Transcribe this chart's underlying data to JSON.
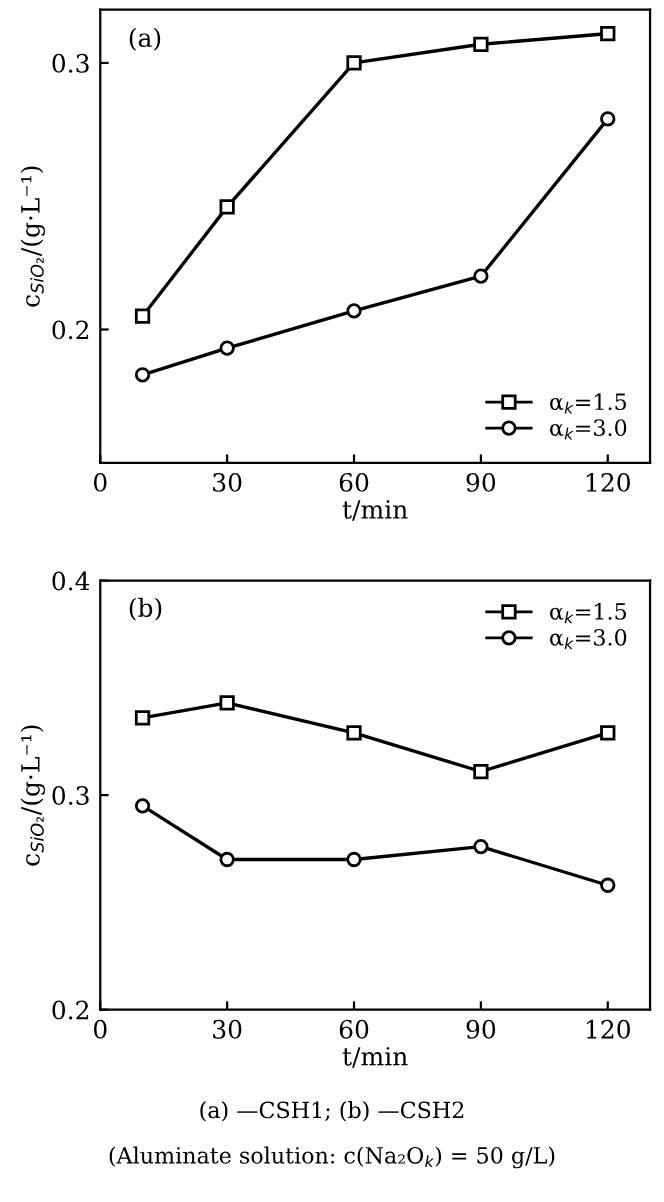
{
  "chart_data": [
    {
      "type": "line",
      "title": "(a)",
      "xlabel": "t/min",
      "ylabel": "c$_{SiO₂}$/(g·L⁻¹)",
      "x": [
        10,
        30,
        60,
        90,
        120
      ],
      "series": [
        {
          "name": "α$_{k}$=1.5",
          "color": "#000000",
          "marker": "square",
          "values": [
            0.205,
            0.246,
            0.3,
            0.307,
            0.311
          ]
        },
        {
          "name": "α$_{k}$=3.0",
          "color": "#000000",
          "marker": "circle",
          "values": [
            0.183,
            0.193,
            0.207,
            0.22,
            0.279
          ]
        }
      ],
      "xlim": [
        0,
        130
      ],
      "xticks": [
        0,
        30,
        60,
        90,
        120
      ],
      "ylim": [
        0.15,
        0.32
      ],
      "yticks": [
        0.2,
        0.3
      ],
      "grid": false,
      "legend": "bottom right",
      "line_style": "solid"
    },
    {
      "type": "line",
      "title": "(b)",
      "xlabel": "t/min",
      "ylabel": "c$_{SiO₂}$/(g·L⁻¹)",
      "x": [
        10,
        30,
        60,
        90,
        120
      ],
      "series": [
        {
          "name": "α$_{k}$=1.5",
          "color": "#000000",
          "marker": "square",
          "values": [
            0.336,
            0.343,
            0.329,
            0.311,
            0.329
          ]
        },
        {
          "name": "α$_{k}$=3.0",
          "color": "#000000",
          "marker": "circle",
          "values": [
            0.295,
            0.27,
            0.27,
            0.276,
            0.258
          ]
        }
      ],
      "xlim": [
        0,
        130
      ],
      "xticks": [
        0,
        30,
        60,
        90,
        120
      ],
      "ylim": [
        0.2,
        0.4
      ],
      "yticks": [
        0.2,
        0.3,
        0.4
      ],
      "grid": false,
      "legend": "top right",
      "line_style": "solid",
      "annotations": [
        "(a) —CSH1; (b) —CSH2",
        "(Aluminate solution: c(Na₂O$_{k}$) = 50 g/L)"
      ]
    }
  ]
}
